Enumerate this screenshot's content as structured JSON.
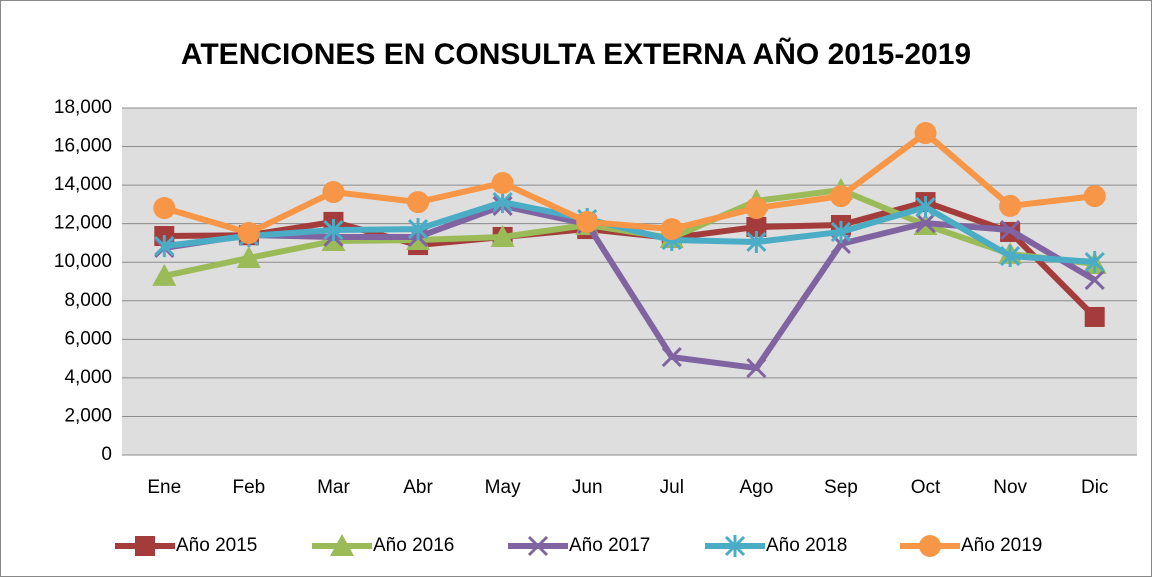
{
  "chart_data": {
    "type": "line",
    "title": "ATENCIONES EN CONSULTA EXTERNA AÑO 2015-2019",
    "categories": [
      "Ene",
      "Feb",
      "Mar",
      "Abr",
      "May",
      "Jun",
      "Jul",
      "Ago",
      "Sep",
      "Oct",
      "Nov",
      "Dic"
    ],
    "series": [
      {
        "name": "Año 2015",
        "color": "#a33c3a",
        "marker": "square",
        "values": [
          11360,
          11400,
          12090,
          10890,
          11310,
          11720,
          11260,
          11830,
          11930,
          13120,
          11570,
          7160
        ]
      },
      {
        "name": "Año 2016",
        "color": "#9bbb59",
        "marker": "triangle",
        "values": [
          9290,
          10220,
          11100,
          11150,
          11310,
          11930,
          11260,
          13180,
          13750,
          11930,
          10430,
          9910
        ]
      },
      {
        "name": "Año 2017",
        "color": "#8064a2",
        "marker": "x",
        "values": [
          10740,
          11410,
          11310,
          11310,
          12920,
          11980,
          5080,
          4510,
          10950,
          12030,
          11670,
          9080
        ]
      },
      {
        "name": "Año 2018",
        "color": "#4bacc6",
        "marker": "star",
        "values": [
          10840,
          11360,
          11670,
          11720,
          13120,
          12240,
          11150,
          11050,
          11570,
          12860,
          10320,
          10010
        ]
      },
      {
        "name": "Año 2019",
        "color": "#f79646",
        "marker": "circle",
        "values": [
          12810,
          11520,
          13640,
          13120,
          14110,
          12090,
          11720,
          12810,
          13430,
          16700,
          12920,
          13430
        ]
      }
    ],
    "ylim": [
      0,
      18000
    ],
    "yticks": [
      0,
      {
        "value": 2000,
        "label": "2,000"
      },
      {
        "value": 4000,
        "label": "4,000"
      },
      {
        "value": 6000,
        "label": "6,000"
      },
      {
        "value": 8000,
        "label": "8,000"
      },
      {
        "value": 10000,
        "label": "10,000"
      },
      {
        "value": 12000,
        "label": "12,000"
      },
      {
        "value": 14000,
        "label": "14,000"
      },
      {
        "value": 16000,
        "label": "16,000"
      },
      {
        "value": 18000,
        "label": "18,000"
      }
    ],
    "grid": true,
    "legend": "bottom"
  }
}
